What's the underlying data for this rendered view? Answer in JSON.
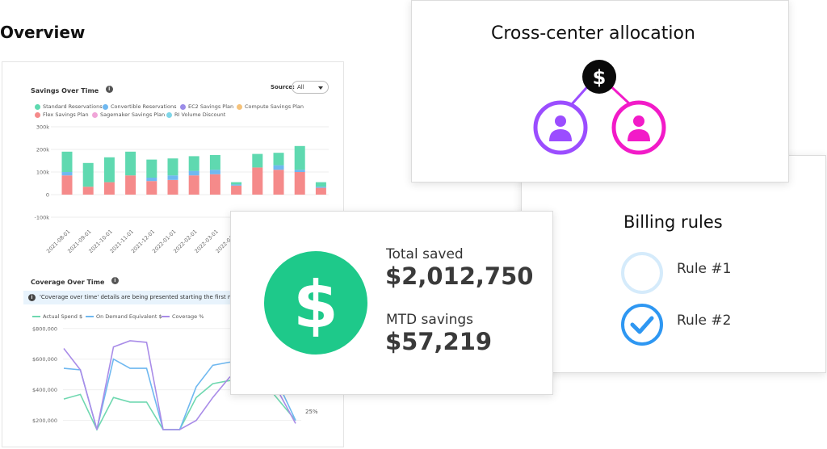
{
  "overview": {
    "heading": "Overview",
    "savings_chart": {
      "title": "Savings Over Time",
      "source_label": "Source:",
      "source_value": "All",
      "legend": [
        {
          "label": "Standard Reservations",
          "color": "#5fd9b0"
        },
        {
          "label": "Convertible Reservations",
          "color": "#6fb8f0"
        },
        {
          "label": "EC2 Savings Plan",
          "color": "#9b8ce8"
        },
        {
          "label": "Compute Savings Plan",
          "color": "#f5c27a"
        },
        {
          "label": "Flex Savings Plan",
          "color": "#f58a8a"
        },
        {
          "label": "Sagemaker Savings Plan",
          "color": "#f0a5d8"
        },
        {
          "label": "RI Volume Discount",
          "color": "#7fd6e8"
        }
      ]
    },
    "coverage_chart": {
      "title": "Coverage Over Time",
      "notice": "'Coverage over time' details are being presented starting the first month 'C",
      "legend": [
        {
          "label": "Actual Spend $",
          "color": "#6fd8b0"
        },
        {
          "label": "On Demand Equivalent $",
          "color": "#6fb8f0"
        },
        {
          "label": "Coverage %",
          "color": "#a98ce8"
        }
      ],
      "right_tick": "25%"
    }
  },
  "chart_data": [
    {
      "type": "bar",
      "title": "Savings Over Time",
      "xlabel": "",
      "ylabel": "",
      "ylim": [
        -100000,
        300000
      ],
      "y_ticks": [
        "300k",
        "200k",
        "100k",
        "0",
        "-100k"
      ],
      "categories": [
        "2021-08-01",
        "2021-09-01",
        "2021-10-01",
        "2021-11-01",
        "2021-12-01",
        "2022-01-01",
        "2022-02-01",
        "2022-03-01",
        "2022-04-01",
        "",
        "",
        "",
        ""
      ],
      "series": [
        {
          "name": "Flex Savings Plan",
          "color": "#f58a8a",
          "values": [
            85000,
            35000,
            55000,
            85000,
            60000,
            65000,
            85000,
            90000,
            40000,
            120000,
            110000,
            100000,
            30000
          ]
        },
        {
          "name": "Convertible Reservations",
          "color": "#6fb8f0",
          "values": [
            15000,
            0,
            0,
            0,
            15000,
            20000,
            20000,
            20000,
            5000,
            0,
            20000,
            10000,
            5000
          ]
        },
        {
          "name": "Standard Reservations",
          "color": "#5fd9b0",
          "values": [
            90000,
            105000,
            110000,
            105000,
            80000,
            75000,
            65000,
            65000,
            10000,
            60000,
            55000,
            105000,
            20000
          ]
        }
      ]
    },
    {
      "type": "line",
      "title": "Coverage Over Time",
      "xlabel": "",
      "ylabel": "",
      "ylim": [
        140000,
        820000
      ],
      "y_ticks": [
        "$800,000",
        "$600,000",
        "$400,000",
        "$200,000"
      ],
      "x": [
        0,
        1,
        2,
        3,
        4,
        5,
        6,
        7,
        8,
        9,
        10,
        11,
        12,
        13,
        14
      ],
      "series": [
        {
          "name": "Actual Spend $",
          "color": "#6fd8b0",
          "values": [
            340000,
            370000,
            140000,
            350000,
            320000,
            320000,
            140000,
            140000,
            350000,
            440000,
            460000,
            470000,
            460000,
            330000,
            200000
          ]
        },
        {
          "name": "On Demand Equivalent $",
          "color": "#6fb8f0",
          "values": [
            540000,
            530000,
            140000,
            600000,
            540000,
            540000,
            140000,
            140000,
            420000,
            560000,
            580000,
            580000,
            560000,
            430000,
            200000
          ]
        },
        {
          "name": "Coverage %",
          "color": "#a98ce8",
          "values": [
            670000,
            530000,
            140000,
            680000,
            720000,
            710000,
            140000,
            140000,
            200000,
            350000,
            480000,
            560000,
            600000,
            380000,
            180000
          ]
        }
      ]
    }
  ],
  "cross_center": {
    "title": "Cross-center allocation",
    "dollar_glyph": "$",
    "colors": {
      "hub": "#0a0a0a",
      "left": "#9b4dff",
      "right": "#f21bc8"
    }
  },
  "billing": {
    "title": "Billing rules",
    "rules": [
      {
        "label": "Rule #1",
        "checked": false
      },
      {
        "label": "Rule #2",
        "checked": true
      }
    ],
    "colors": {
      "checked": "#2e97f2",
      "unchecked": "#d5ebfb"
    }
  },
  "savings_card": {
    "dollar_glyph": "$",
    "total_label": "Total saved",
    "total_value": "$2,012,750",
    "mtd_label": "MTD savings",
    "mtd_value": "$57,219",
    "color": "#1ec98a"
  }
}
